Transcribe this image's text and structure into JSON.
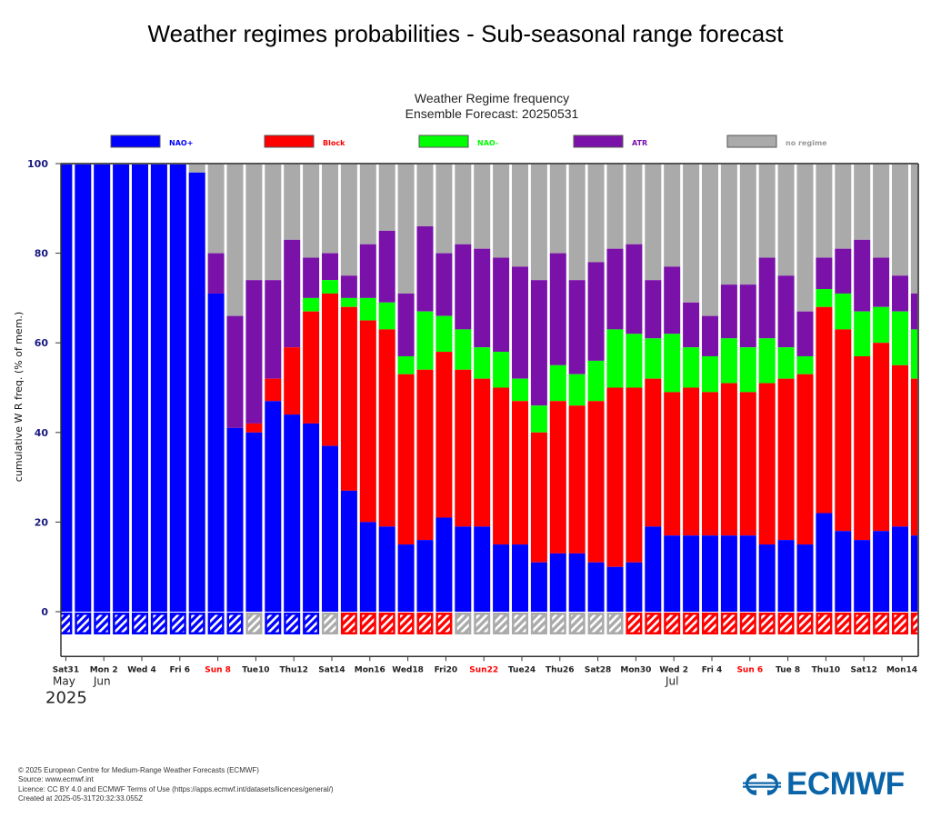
{
  "page": {
    "title": "Weather regimes probabilities - Sub-seasonal range forecast"
  },
  "footer": {
    "lines": [
      "© 2025 European Centre for Medium-Range Weather Forecasts (ECMWF)",
      "Source: www.ecmwf.int",
      "Licence: CC BY 4.0 and ECMWF Terms of Use (https://apps.ecmwf.int/datasets/licences/general/)",
      "Created at 2025-05-31T20:32:33.055Z"
    ],
    "logo_text": "ECMWF",
    "logo_icon": "ecmwf-logo-icon",
    "logo_color": "#0a64a8"
  },
  "chart_data": {
    "type": "bar",
    "stacked": true,
    "cumulative": true,
    "title": "Weather Regime frequency",
    "subtitle": "Ensemble Forecast: 20250531",
    "xlabel": "",
    "ylabel": "cumulative W R freq. (% of mem.)",
    "ylim": [
      -10,
      100
    ],
    "yticks": [
      0,
      20,
      40,
      60,
      80,
      100
    ],
    "legend_position": "top",
    "legend": [
      {
        "name": "NAO+",
        "color": "#0000ff"
      },
      {
        "name": "Block",
        "color": "#ff0000"
      },
      {
        "name": "NAO-",
        "color": "#00ff00"
      },
      {
        "name": "ATR",
        "color": "#7a12aa"
      },
      {
        "name": "no regime",
        "color": "#aaaaaa"
      }
    ],
    "categories": [
      "May 31",
      "Jun 1",
      "Jun 2",
      "Jun 3",
      "Jun 4",
      "Jun 5",
      "Jun 6",
      "Jun 7",
      "Jun 8",
      "Jun 9",
      "Jun 10",
      "Jun 11",
      "Jun 12",
      "Jun 13",
      "Jun 14",
      "Jun 15",
      "Jun 16",
      "Jun 17",
      "Jun 18",
      "Jun 19",
      "Jun 20",
      "Jun 21",
      "Jun 22",
      "Jun 23",
      "Jun 24",
      "Jun 25",
      "Jun 26",
      "Jun 27",
      "Jun 28",
      "Jun 29",
      "Jun 30",
      "Jul 1",
      "Jul 2",
      "Jul 3",
      "Jul 4",
      "Jul 5",
      "Jul 6",
      "Jul 7",
      "Jul 8",
      "Jul 9",
      "Jul 10",
      "Jul 11",
      "Jul 12",
      "Jul 13",
      "Jul 14",
      "Jul 15"
    ],
    "cumulative_series": [
      {
        "name": "NAO+",
        "color": "#0000ff",
        "values": [
          100,
          100,
          100,
          100,
          100,
          100,
          100,
          98,
          71,
          41,
          40,
          47,
          44,
          42,
          37,
          27,
          20,
          19,
          15,
          16,
          21,
          19,
          19,
          15,
          15,
          11,
          13,
          13,
          11,
          10,
          11,
          19,
          17,
          17,
          17,
          17,
          17,
          15,
          16,
          15,
          22,
          18,
          16,
          18,
          19,
          17
        ]
      },
      {
        "name": "Block",
        "color": "#ff0000",
        "values": [
          100,
          100,
          100,
          100,
          100,
          100,
          100,
          98,
          71,
          41,
          42,
          52,
          59,
          67,
          71,
          68,
          65,
          63,
          53,
          54,
          58,
          54,
          52,
          50,
          47,
          40,
          47,
          46,
          47,
          50,
          50,
          52,
          49,
          50,
          49,
          51,
          49,
          51,
          52,
          53,
          68,
          63,
          57,
          60,
          55,
          52
        ]
      },
      {
        "name": "NAO-",
        "color": "#00ff00",
        "values": [
          100,
          100,
          100,
          100,
          100,
          100,
          100,
          98,
          71,
          41,
          42,
          52,
          59,
          70,
          74,
          70,
          70,
          69,
          57,
          67,
          66,
          63,
          59,
          58,
          52,
          46,
          55,
          53,
          56,
          63,
          62,
          61,
          62,
          59,
          57,
          61,
          59,
          61,
          59,
          57,
          72,
          71,
          67,
          68,
          67,
          63
        ]
      },
      {
        "name": "ATR",
        "color": "#7a12aa",
        "values": [
          100,
          100,
          100,
          100,
          100,
          100,
          100,
          98,
          80,
          66,
          74,
          74,
          83,
          79,
          80,
          75,
          82,
          85,
          71,
          86,
          80,
          82,
          81,
          79,
          77,
          74,
          80,
          74,
          78,
          81,
          82,
          74,
          77,
          69,
          66,
          73,
          73,
          79,
          75,
          67,
          79,
          81,
          83,
          79,
          75,
          71
        ]
      },
      {
        "name": "no regime",
        "color": "#aaaaaa",
        "values": [
          100,
          100,
          100,
          100,
          100,
          100,
          100,
          100,
          100,
          100,
          100,
          100,
          100,
          100,
          100,
          100,
          100,
          100,
          100,
          100,
          100,
          100,
          100,
          100,
          100,
          100,
          100,
          100,
          100,
          100,
          100,
          100,
          100,
          100,
          100,
          100,
          100,
          100,
          100,
          100,
          100,
          100,
          100,
          100,
          100,
          100
        ]
      }
    ],
    "dominant_regime": [
      "NAO+",
      "NAO+",
      "NAO+",
      "NAO+",
      "NAO+",
      "NAO+",
      "NAO+",
      "NAO+",
      "NAO+",
      "NAO+",
      "no regime",
      "NAO+",
      "NAO+",
      "NAO+",
      "no regime",
      "Block",
      "Block",
      "Block",
      "Block",
      "Block",
      "Block",
      "no regime",
      "no regime",
      "no regime",
      "no regime",
      "no regime",
      "no regime",
      "no regime",
      "no regime",
      "no regime",
      "Block",
      "Block",
      "Block",
      "Block",
      "Block",
      "Block",
      "Block",
      "Block",
      "Block",
      "Block",
      "Block",
      "Block",
      "Block",
      "Block",
      "Block",
      "Block"
    ],
    "xtick_labels": [
      {
        "label": "Sat31",
        "index": 0,
        "weekend": false
      },
      {
        "label": "Mon 2",
        "index": 2,
        "weekend": false
      },
      {
        "label": "Wed 4",
        "index": 4,
        "weekend": false
      },
      {
        "label": "Fri 6",
        "index": 6,
        "weekend": false
      },
      {
        "label": "Sun 8",
        "index": 8,
        "weekend": true
      },
      {
        "label": "Tue10",
        "index": 10,
        "weekend": false
      },
      {
        "label": "Thu12",
        "index": 12,
        "weekend": false
      },
      {
        "label": "Sat14",
        "index": 14,
        "weekend": false
      },
      {
        "label": "Mon16",
        "index": 16,
        "weekend": false
      },
      {
        "label": "Wed18",
        "index": 18,
        "weekend": false
      },
      {
        "label": "Fri20",
        "index": 20,
        "weekend": false
      },
      {
        "label": "Sun22",
        "index": 22,
        "weekend": true
      },
      {
        "label": "Tue24",
        "index": 24,
        "weekend": false
      },
      {
        "label": "Thu26",
        "index": 26,
        "weekend": false
      },
      {
        "label": "Sat28",
        "index": 28,
        "weekend": false
      },
      {
        "label": "Mon30",
        "index": 30,
        "weekend": false
      },
      {
        "label": "Wed 2",
        "index": 32,
        "weekend": false
      },
      {
        "label": "Fri 4",
        "index": 34,
        "weekend": false
      },
      {
        "label": "Sun 6",
        "index": 36,
        "weekend": true
      },
      {
        "label": "Tue 8",
        "index": 38,
        "weekend": false
      },
      {
        "label": "Thu10",
        "index": 40,
        "weekend": false
      },
      {
        "label": "Sat12",
        "index": 42,
        "weekend": false
      },
      {
        "label": "Mon14",
        "index": 44,
        "weekend": false
      }
    ],
    "month_labels": [
      {
        "label": "May",
        "index": 0
      },
      {
        "label": "Jun",
        "index": 2
      },
      {
        "label": "Jul",
        "index": 32
      }
    ],
    "year_label": "2025",
    "grid": false
  }
}
